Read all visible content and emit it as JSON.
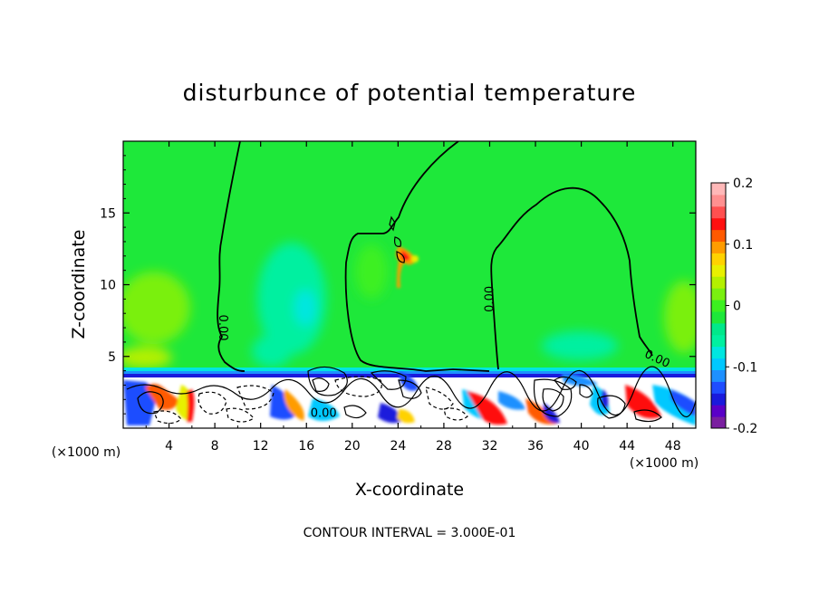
{
  "chart_data": {
    "type": "heatmap",
    "title": "disturbunce of potential temperature",
    "xlabel": "X-coordinate",
    "ylabel": "Z-coordinate",
    "x_unit": "(×1000 m)",
    "x_unit_right": "(×1000 m)",
    "xlim": [
      0,
      50
    ],
    "ylim": [
      0,
      20
    ],
    "x_ticks": [
      4,
      8,
      12,
      16,
      20,
      24,
      28,
      32,
      36,
      40,
      44,
      48
    ],
    "y_ticks": [
      5,
      10,
      15
    ],
    "contour_interval_text": "CONTOUR INTERVAL = 3.000E-01",
    "contour_labels": [
      {
        "text": "0.00",
        "x": 8.4,
        "y": 7.0,
        "rot": 90
      },
      {
        "text": "0.00",
        "x": 32.3,
        "y": 9.0,
        "rot": -90
      },
      {
        "text": "0.00",
        "x": 46.5,
        "y": 4.6,
        "rot": 25
      },
      {
        "text": "0.00",
        "x": 17.5,
        "y": 0.8,
        "rot": 0
      }
    ],
    "colorbar": {
      "range": [
        -0.2,
        0.2
      ],
      "tick_labels": [
        "0.2",
        "0.1",
        "0",
        "-0.1",
        "-0.2"
      ],
      "tick_values": [
        0.2,
        0.1,
        0,
        -0.1,
        -0.2
      ],
      "colors": [
        "#7a1fa0",
        "#5a00c8",
        "#1a1adc",
        "#1f4dff",
        "#1e90ff",
        "#00c8ff",
        "#00e6e0",
        "#00f0a0",
        "#00e88a",
        "#1ee83a",
        "#3cf020",
        "#7af010",
        "#b4f000",
        "#e8f000",
        "#ffd200",
        "#ff9c00",
        "#ff5a00",
        "#ff1010",
        "#ff5050",
        "#ff9090",
        "#ffb8b8"
      ]
    },
    "field_zero_color": "#1ee83a"
  }
}
